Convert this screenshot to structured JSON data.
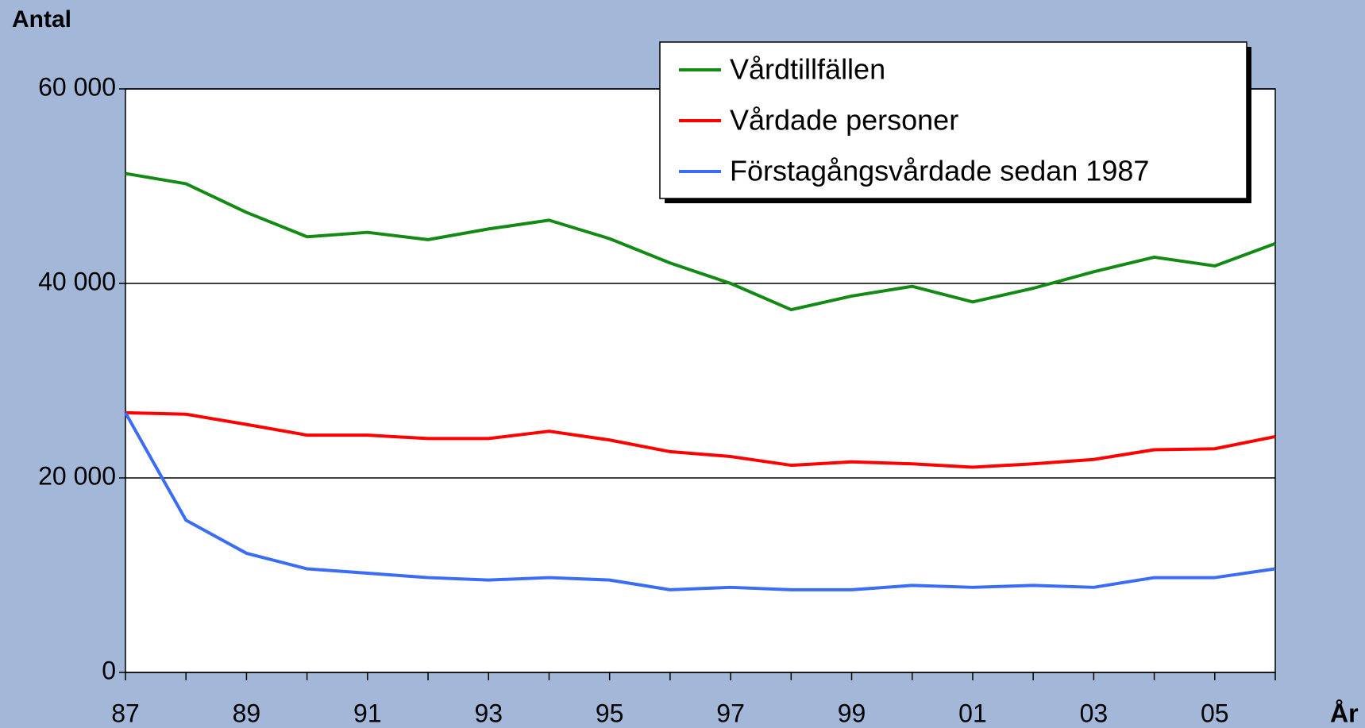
{
  "chart_data": {
    "type": "line",
    "y_label": "Antal",
    "x_label": "År",
    "categories": [
      "87",
      null,
      "89",
      null,
      "91",
      null,
      "93",
      null,
      "95",
      null,
      "97",
      null,
      "99",
      null,
      "01",
      null,
      "03",
      null,
      "05",
      null
    ],
    "series": [
      {
        "name": "Vårdtillfällen",
        "color": "#138a13",
        "values": [
          51300,
          50250,
          47300,
          44800,
          45250,
          44500,
          45600,
          46500,
          44600,
          42100,
          40000,
          37300,
          38700,
          39700,
          38100,
          39500,
          41200,
          42700,
          41800,
          44100
        ]
      },
      {
        "name": "Vårdade personer",
        "color": "#ff0000",
        "values": [
          26700,
          26550,
          25500,
          24400,
          24400,
          24050,
          24050,
          24800,
          23900,
          22700,
          22200,
          21300,
          21650,
          21450,
          21100,
          21450,
          21900,
          22900,
          23000,
          24250
        ]
      },
      {
        "name": "Förstagångsvårdade sedan 1987",
        "color": "#3a6cf5",
        "values": [
          26700,
          15650,
          12250,
          10650,
          10200,
          9750,
          9500,
          9750,
          9500,
          8500,
          8750,
          8500,
          8500,
          8950,
          8750,
          8950,
          8750,
          9750,
          9750,
          10650
        ]
      }
    ],
    "ylim": [
      0,
      60000
    ],
    "yticks": [
      0,
      {
        "value": 20000,
        "label": "20 000"
      },
      {
        "value": 40000,
        "label": "40 000"
      },
      {
        "value": 60000,
        "label": "60 000"
      }
    ],
    "grid": true,
    "legend": "top-right"
  }
}
